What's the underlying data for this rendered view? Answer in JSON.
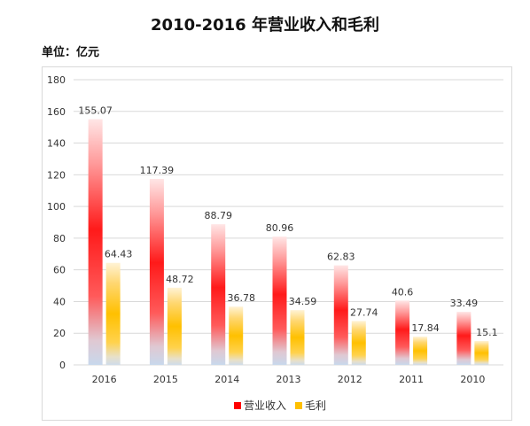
{
  "title": "2010-2016 年营业收入和毛利",
  "unit_label": "单位：亿元",
  "chart_data": {
    "type": "bar",
    "categories": [
      "2016",
      "2015",
      "2014",
      "2013",
      "2012",
      "2011",
      "2010"
    ],
    "series": [
      {
        "name": "营业收入",
        "values": [
          155.07,
          117.39,
          88.79,
          80.96,
          62.83,
          40.6,
          33.49
        ],
        "color": "#ff0000"
      },
      {
        "name": "毛利",
        "values": [
          64.43,
          48.72,
          36.78,
          34.59,
          27.74,
          17.84,
          15.1
        ],
        "color": "#ffc000"
      }
    ],
    "data_labels": [
      [
        "155.07",
        "117.39",
        "88.79",
        "80.96",
        "62.83",
        "40.6",
        "33.49"
      ],
      [
        "64.43",
        "48.72",
        "36.78",
        "34.59",
        "27.74",
        "17.84",
        "15.1"
      ]
    ],
    "y_ticks": [
      "0",
      "20",
      "40",
      "60",
      "80",
      "100",
      "120",
      "140",
      "160",
      "180"
    ],
    "ylim": [
      0,
      180
    ],
    "grid": true,
    "legend_position": "bottom"
  }
}
